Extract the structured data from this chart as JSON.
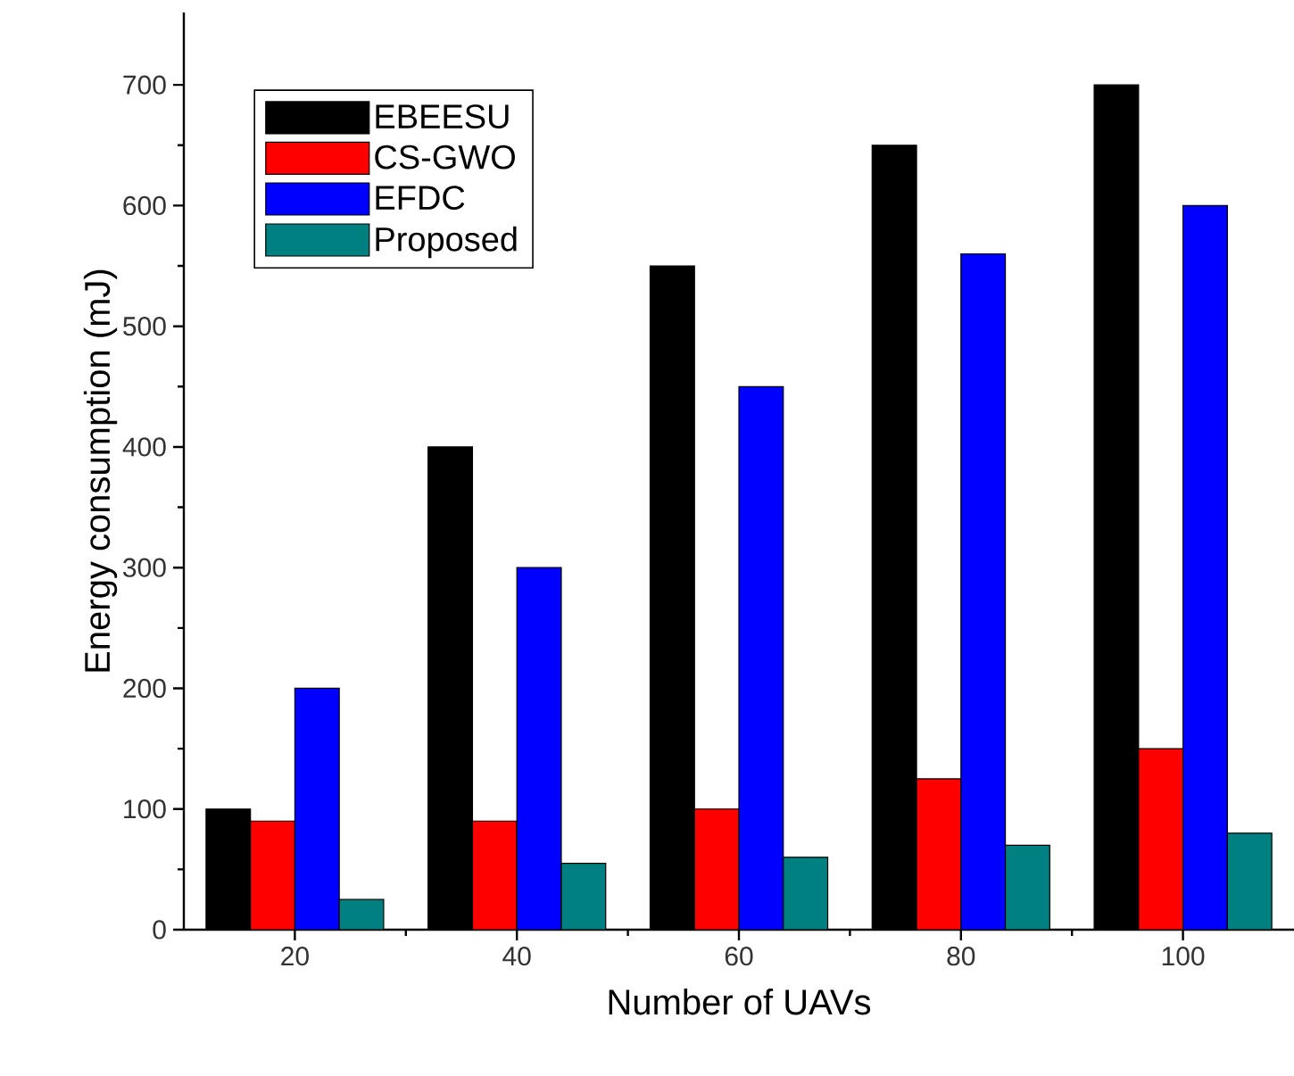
{
  "chart_data": {
    "type": "bar",
    "xlabel": "Number of UAVs",
    "ylabel": "Energy consumption (mJ)",
    "categories": [
      "20",
      "40",
      "60",
      "80",
      "100"
    ],
    "series": [
      {
        "name": "EBEESU",
        "color": "#000000",
        "values": [
          100,
          400,
          550,
          650,
          700
        ]
      },
      {
        "name": "CS-GWO",
        "color": "#ff0000",
        "values": [
          90,
          90,
          100,
          125,
          150
        ]
      },
      {
        "name": "EFDC",
        "color": "#0000ff",
        "values": [
          200,
          300,
          450,
          560,
          600
        ]
      },
      {
        "name": "Proposed",
        "color": "#008080",
        "values": [
          25,
          55,
          60,
          70,
          80
        ]
      }
    ],
    "ylim": [
      0,
      760
    ],
    "yticks": [
      0,
      100,
      200,
      300,
      400,
      500,
      600,
      700
    ],
    "legend": "top left",
    "grid": false
  }
}
